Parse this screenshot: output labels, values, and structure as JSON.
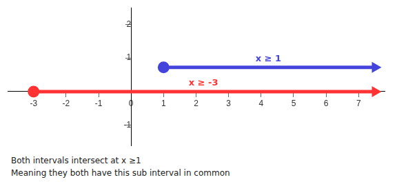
{
  "chart_data": {
    "type": "line",
    "xlim": [
      -3.8,
      7.8
    ],
    "ylim": [
      -1.6,
      2.5
    ],
    "xticks": [
      -3,
      -2,
      -1,
      0,
      1,
      2,
      3,
      4,
      5,
      6,
      7
    ],
    "yticks": [
      -1,
      1,
      2
    ],
    "grid": false,
    "series": [
      {
        "name": "x ≥ -3",
        "color": "#FF3333",
        "x": [
          -3,
          7.45
        ],
        "values": [
          0.0,
          0.0
        ],
        "marker": "circle"
      },
      {
        "name": "x ≥ 1",
        "color": "#4444DD",
        "x": [
          1,
          7.45
        ],
        "values": [
          0.72,
          0.72
        ],
        "marker": "circle"
      }
    ],
    "annotations": [
      "Both intervals intersect at x ≥1",
      "Meaning they both have this sub interval in common"
    ]
  }
}
